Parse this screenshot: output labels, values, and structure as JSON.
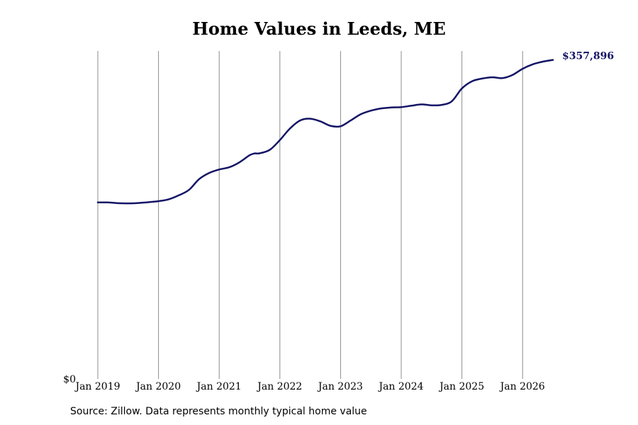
{
  "chart_data": {
    "type": "line",
    "title": "Home Values in Leeds, ME",
    "source_note": "Source: Zillow. Data represents monthly typical home value",
    "x_ticks": [
      "Jan 2019",
      "Jan 2020",
      "Jan 2021",
      "Jan 2022",
      "Jan 2023",
      "Jan 2024",
      "Jan 2025",
      "Jan 2026"
    ],
    "y_tick_label": "$0",
    "end_label": "$357,896",
    "ylim": [
      0,
      360000
    ],
    "xlim": [
      "2018-11",
      "2026-07"
    ],
    "grid": "vertical",
    "line_color": "#141466",
    "grid_color": "#8c8c8c",
    "series": [
      {
        "x": [
          "2019-01",
          "2019-03",
          "2019-05",
          "2019-07",
          "2019-09",
          "2019-11",
          "2020-01",
          "2020-03",
          "2020-05",
          "2020-07",
          "2020-09",
          "2020-11",
          "2021-01",
          "2021-03",
          "2021-05",
          "2021-07",
          "2021-08",
          "2021-09",
          "2021-11",
          "2022-01",
          "2022-03",
          "2022-05",
          "2022-07",
          "2022-09",
          "2022-11",
          "2023-01",
          "2023-03",
          "2023-05",
          "2023-07",
          "2023-09",
          "2023-11",
          "2024-01",
          "2024-03",
          "2024-05",
          "2024-07",
          "2024-09",
          "2024-11",
          "2025-01",
          "2025-03",
          "2025-05",
          "2025-07",
          "2025-09",
          "2025-11",
          "2026-01",
          "2026-03",
          "2026-05",
          "2026-07"
        ],
        "values": [
          198000,
          198000,
          197200,
          197000,
          197400,
          198300,
          199500,
          201500,
          206000,
          212000,
          224000,
          231000,
          235000,
          237500,
          243000,
          251000,
          253000,
          253200,
          257000,
          268000,
          281000,
          290000,
          292000,
          289000,
          284000,
          283500,
          290000,
          297000,
          301000,
          303500,
          304500,
          305000,
          306500,
          308000,
          307000,
          307500,
          311500,
          326000,
          334000,
          337000,
          338500,
          337500,
          341000,
          348000,
          353000,
          356000,
          357896
        ]
      }
    ]
  }
}
